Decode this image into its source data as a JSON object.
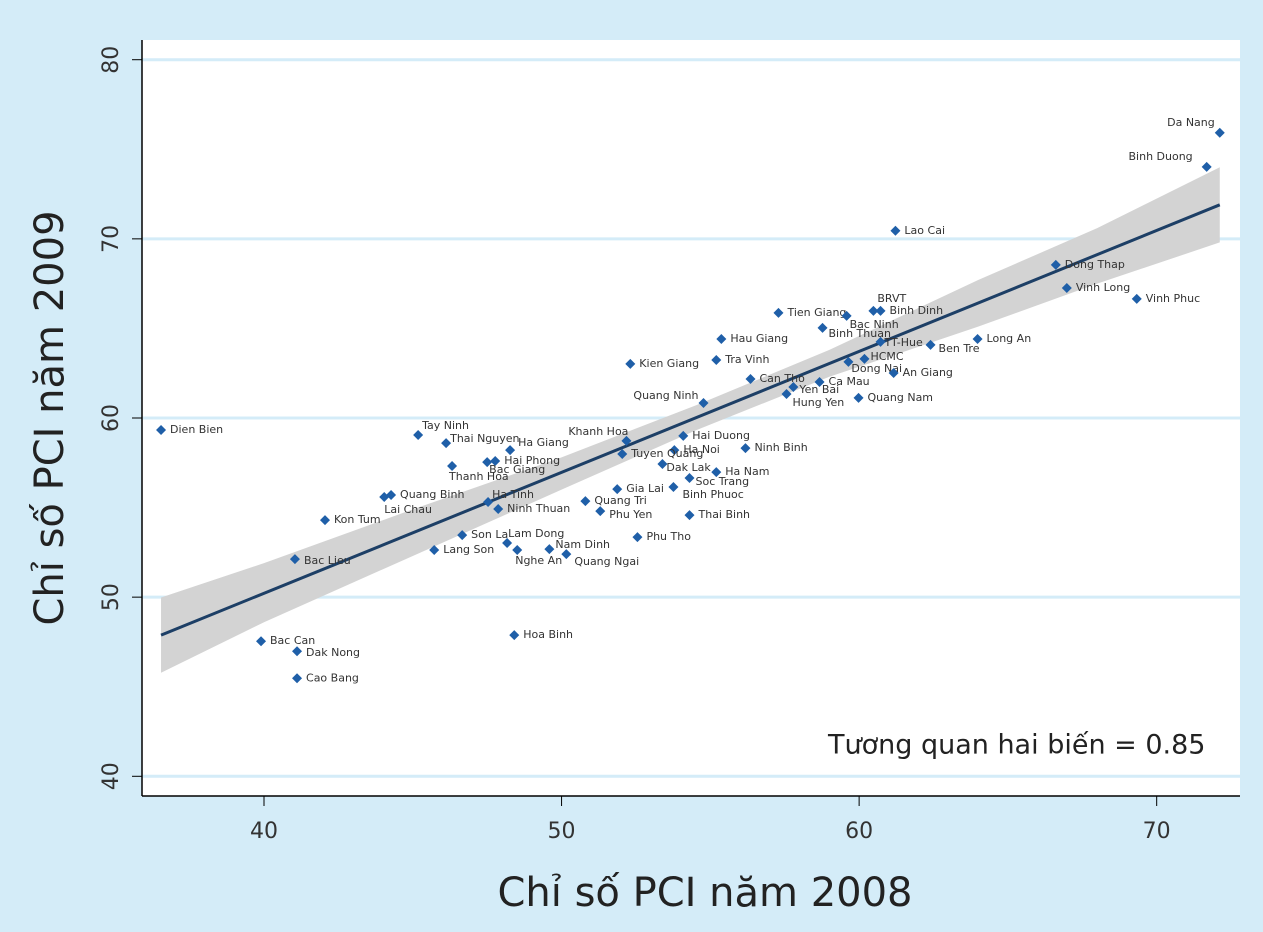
{
  "chart_data": {
    "type": "scatter",
    "x_label": "Chỉ số PCI  năm 2008",
    "y_label": "Chỉ số PCI  năm 2009",
    "annotation": "Tương quan hai biến = 0.85",
    "xlim": [
      35.9,
      72.8
    ],
    "ylim": [
      38.9,
      81.1
    ],
    "xticks": [
      40,
      50,
      60,
      70
    ],
    "yticks": [
      40,
      50,
      60,
      70,
      80
    ],
    "grid": true,
    "color": "#1f5fa8",
    "labels": [
      "Da Nang",
      "Binh Duong",
      "Lao Cai",
      "Dong Thap",
      "Vinh Long",
      "Vinh Phuc",
      "BRVT",
      "Binh Dinh",
      "Tien Giang",
      "Bac Ninh",
      "Binh Thuan",
      "Hau Giang",
      "Long An",
      "TT-Hue",
      "Ben Tre",
      "HCMC",
      "Dong Nai",
      "Kien Giang",
      "Tra Vinh",
      "An Giang",
      "Can Tho",
      "Ca Mau",
      "Yen Bai",
      "Hung Yen",
      "Quang Nam",
      "Quang Ninh",
      "Dien Bien",
      "Tay Ninh",
      "Thai Nguyen",
      "Khanh Hoa",
      "Hai Duong",
      "Ha Giang",
      "Ninh Binh",
      "Ha Noi",
      "Tuyen Quang",
      "Hai Phong",
      "Thanh Hoa",
      "Bac Giang",
      "Dak Lak",
      "Ha Nam",
      "Soc Trang",
      "Gia Lai",
      "Binh Phuoc",
      "Quang Binh",
      "Lai Chau",
      "Ha Tinh",
      "Quang Tri",
      "Ninh Thuan",
      "Phu Yen",
      "Thai Binh",
      "Kon Tum",
      "Son La",
      "Phu Tho",
      "Lam Dong",
      "Nam Dinh",
      "Nghe An",
      "Lang Son",
      "Quang Ngai",
      "Bac Lieu",
      "Hoa Binh",
      "Bac Can",
      "Dak Nong",
      "Cao Bang"
    ],
    "x": [
      72.12,
      71.68,
      61.22,
      66.61,
      66.98,
      69.33,
      60.48,
      60.72,
      57.29,
      59.58,
      58.77,
      55.37,
      63.98,
      60.72,
      62.4,
      60.18,
      59.64,
      52.31,
      55.2,
      61.16,
      56.35,
      58.67,
      57.79,
      57.56,
      59.98,
      54.77,
      36.54,
      45.18,
      46.12,
      52.18,
      54.09,
      48.27,
      56.18,
      53.79,
      52.04,
      47.77,
      46.32,
      47.5,
      53.39,
      55.2,
      54.3,
      51.87,
      53.76,
      44.27,
      44.04,
      47.53,
      50.8,
      47.87,
      51.3,
      54.3,
      42.05,
      46.66,
      52.55,
      48.17,
      49.59,
      48.51,
      45.72,
      50.16,
      41.04,
      48.41,
      39.9,
      41.11,
      41.11
    ],
    "values": [
      75.92,
      74.02,
      70.45,
      68.55,
      67.26,
      66.65,
      65.98,
      65.98,
      65.87,
      65.7,
      65.03,
      64.41,
      64.41,
      64.25,
      64.08,
      63.3,
      63.13,
      63.02,
      63.24,
      62.51,
      62.18,
      62.01,
      61.73,
      61.34,
      61.12,
      60.84,
      59.33,
      59.05,
      58.6,
      58.72,
      59.0,
      58.21,
      58.32,
      58.21,
      57.99,
      57.6,
      57.32,
      57.54,
      57.43,
      56.98,
      56.65,
      56.03,
      56.15,
      55.7,
      55.59,
      55.31,
      55.36,
      54.92,
      54.8,
      54.58,
      54.3,
      53.46,
      53.35,
      53.02,
      52.68,
      52.63,
      52.63,
      52.4,
      52.12,
      47.88,
      47.54,
      46.98,
      45.47
    ],
    "fit": {
      "x": [
        36.54,
        72.12
      ],
      "values": [
        47.88,
        71.9
      ],
      "color": "#1d3f66"
    },
    "band": {
      "x": [
        36.54,
        40,
        45,
        50,
        54.5,
        59,
        64,
        68,
        72.12
      ],
      "lower": [
        45.78,
        48.6,
        52.3,
        56.0,
        59.3,
        62.3,
        65.1,
        67.5,
        69.8
      ],
      "upper": [
        49.98,
        51.9,
        54.9,
        57.8,
        60.7,
        63.8,
        67.7,
        70.6,
        74.0
      ],
      "color": "#d3d3d3"
    }
  }
}
